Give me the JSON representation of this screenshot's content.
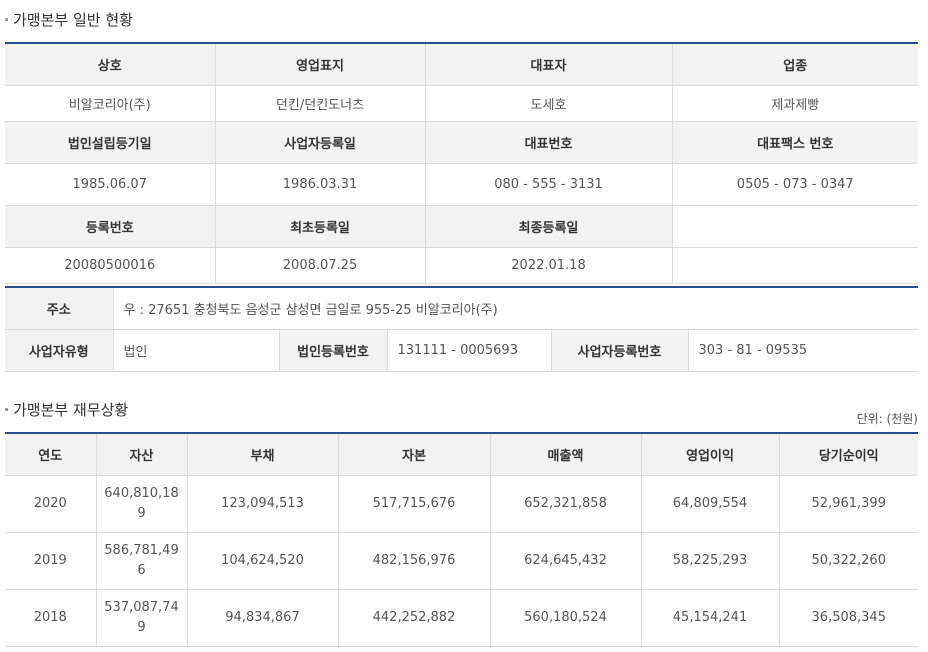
{
  "general": {
    "title": "가맹본부 일반 현황",
    "row1_headers": [
      "상호",
      "영업표지",
      "대표자",
      "업종"
    ],
    "row1_values": [
      "비알코리아(주)",
      "던킨/던킨도너츠",
      "도세호",
      "제과제빵"
    ],
    "row2_headers": [
      "법인설립등기일",
      "사업자등록일",
      "대표번호",
      "대표팩스 번호"
    ],
    "row2_values": [
      "1985.06.07",
      "1986.03.31",
      "080 - 555 - 3131",
      "0505 - 073 - 0347"
    ],
    "row3_headers": [
      "등록번호",
      "최초등록일",
      "최종등록일",
      ""
    ],
    "row3_values": [
      "20080500016",
      "2008.07.25",
      "2022.01.18",
      ""
    ]
  },
  "address": {
    "address_label": "주소",
    "address_value": "우 : 27651 충청북도 음성군 삼성면 금일로 955-25 비알코리아(주)",
    "biz_type_label": "사업자유형",
    "biz_type_value": "법인",
    "corp_reg_label": "법인등록번호",
    "corp_reg_value": "131111 - 0005693",
    "biz_reg_label": "사업자등록번호",
    "biz_reg_value": "303 - 81 - 09535"
  },
  "finance": {
    "title": "가맹본부 재무상황",
    "unit": "단위: (천원)",
    "headers": [
      "연도",
      "자산",
      "부채",
      "자본",
      "매출액",
      "영업이익",
      "당기순이익"
    ],
    "rows": [
      [
        "2020",
        "640,810,189",
        "123,094,513",
        "517,715,676",
        "652,321,858",
        "64,809,554",
        "52,961,399"
      ],
      [
        "2019",
        "586,781,496",
        "104,624,520",
        "482,156,976",
        "624,645,432",
        "58,225,293",
        "50,322,260"
      ],
      [
        "2018",
        "537,087,749",
        "94,834,867",
        "442,252,882",
        "560,180,524",
        "45,154,241",
        "36,508,345"
      ]
    ]
  }
}
